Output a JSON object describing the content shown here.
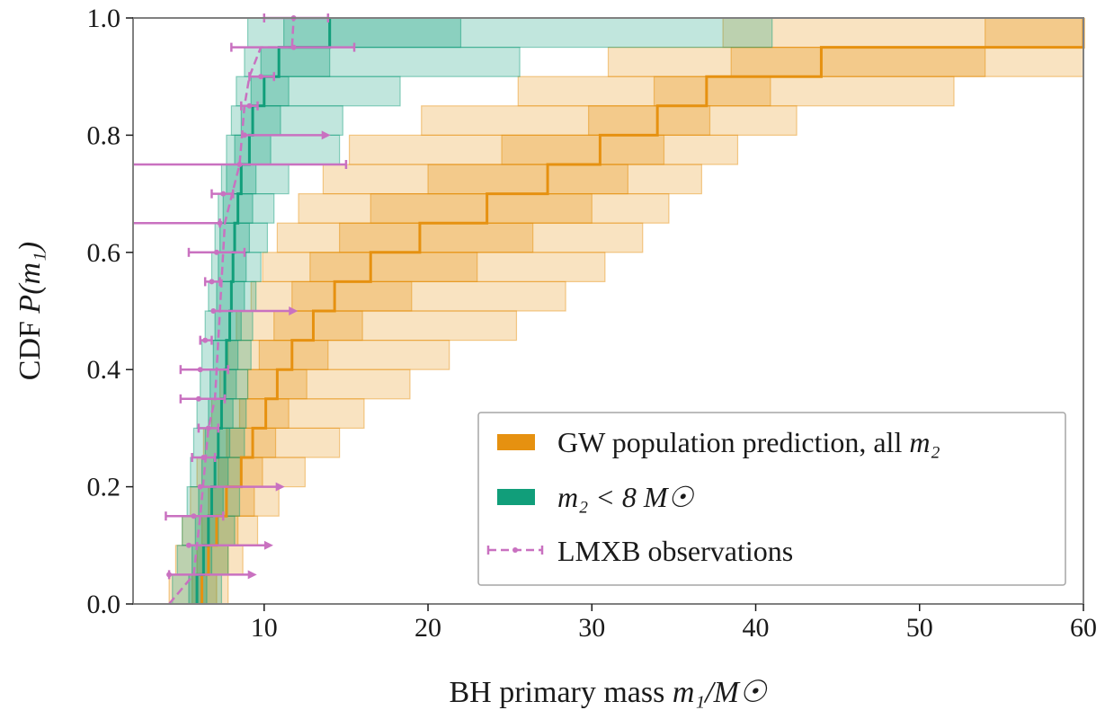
{
  "chart_data": {
    "type": "step-cdf",
    "xlabel_prefix": "BH primary mass ",
    "xlabel_math": "m₁/M☉",
    "ylabel_prefix": "CDF ",
    "ylabel_math": "P(m₁)",
    "xlim": [
      2,
      60
    ],
    "ylim": [
      0,
      1
    ],
    "xticks": [
      10,
      20,
      30,
      40,
      50,
      60
    ],
    "yticks": [
      0.0,
      0.2,
      0.4,
      0.6,
      0.8,
      1.0
    ],
    "xtick_labels": [
      "10",
      "20",
      "30",
      "40",
      "50",
      "60"
    ],
    "ytick_labels": [
      "0.0",
      "0.2",
      "0.4",
      "0.6",
      "0.8",
      "1.0"
    ],
    "grid": false,
    "legend_position": "lower-right",
    "colors": {
      "gw_all": "#e69110",
      "gw_low_m2": "#119e7a",
      "lmxb": "#c971c0"
    },
    "n_bins": 20,
    "series": [
      {
        "name": "GW population prediction, all m₂",
        "key": "gw_all",
        "median": [
          6.2,
          6.6,
          7.1,
          7.7,
          8.6,
          9.3,
          10.1,
          10.8,
          11.7,
          13.0,
          14.3,
          16.5,
          19.5,
          23.6,
          27.3,
          30.5,
          34.0,
          37.0,
          44.0,
          60.0
        ],
        "p25": [
          5.6,
          5.9,
          6.2,
          6.6,
          7.2,
          7.7,
          8.5,
          9.0,
          9.7,
          10.6,
          11.7,
          12.8,
          14.6,
          16.5,
          20.0,
          24.5,
          29.8,
          33.8,
          38.5,
          54.0
        ],
        "p75": [
          7.1,
          7.8,
          8.4,
          9.4,
          9.9,
          10.7,
          11.5,
          12.6,
          13.9,
          16.0,
          19.0,
          23.0,
          26.4,
          30.0,
          32.2,
          34.4,
          37.2,
          40.9,
          54.0,
          60.0
        ],
        "p05": [
          4.2,
          4.6,
          5.0,
          5.5,
          5.9,
          6.3,
          6.8,
          7.3,
          7.8,
          8.3,
          9.2,
          9.9,
          10.8,
          12.1,
          13.6,
          15.2,
          19.6,
          25.5,
          31.0,
          38.0
        ],
        "p95": [
          7.8,
          8.7,
          9.6,
          10.9,
          12.5,
          14.6,
          16.1,
          18.9,
          21.3,
          25.4,
          28.4,
          30.8,
          33.1,
          34.7,
          36.7,
          38.9,
          42.5,
          52.1,
          60.0,
          60.0
        ]
      },
      {
        "name": "m₂ < 8 M☉",
        "key": "gw_low_m2",
        "median": [
          5.9,
          6.3,
          6.6,
          6.8,
          7.0,
          7.2,
          7.4,
          7.6,
          7.7,
          7.9,
          8.0,
          8.1,
          8.2,
          8.4,
          8.6,
          9.1,
          9.3,
          10.0,
          10.9,
          14.0
        ],
        "p25": [
          5.4,
          5.6,
          5.8,
          6.0,
          6.2,
          6.4,
          6.6,
          6.7,
          6.9,
          7.0,
          7.1,
          7.2,
          7.3,
          7.5,
          7.7,
          8.2,
          8.6,
          9.2,
          9.8,
          11.2
        ],
        "p75": [
          6.5,
          6.8,
          7.2,
          7.5,
          7.8,
          7.9,
          8.1,
          8.3,
          8.4,
          8.6,
          8.8,
          8.9,
          9.1,
          9.3,
          9.5,
          10.4,
          11.0,
          11.5,
          14.0,
          22.0
        ],
        "p05": [
          4.4,
          4.7,
          5.0,
          5.3,
          5.5,
          5.7,
          5.9,
          6.1,
          6.2,
          6.4,
          6.6,
          6.8,
          7.0,
          7.2,
          7.4,
          7.7,
          8.0,
          8.3,
          8.8,
          9.0
        ],
        "p95": [
          7.4,
          7.8,
          8.2,
          8.5,
          8.6,
          8.8,
          8.9,
          9.0,
          9.2,
          9.3,
          9.5,
          9.8,
          10.2,
          10.6,
          11.5,
          14.6,
          14.8,
          18.3,
          25.6,
          41.0
        ]
      }
    ],
    "lmxb": {
      "name": "LMXB observations",
      "cdf_x": [
        4.2,
        5.7,
        6.1,
        6.6,
        7.0,
        7.3,
        7.6,
        8.5,
        8.8,
        9.1,
        9.8,
        11.7,
        11.8
      ],
      "cdf_y": [
        0.0,
        0.05,
        0.15,
        0.3,
        0.35,
        0.5,
        0.65,
        0.75,
        0.85,
        0.9,
        0.95,
        0.95,
        1.0
      ],
      "points": [
        {
          "y": 0.05,
          "x": 4.2,
          "lo": 4.2,
          "hi": 9.5,
          "lo_cap": true,
          "hi_arrow": true
        },
        {
          "y": 0.1,
          "x": 5.4,
          "lo": 5.4,
          "hi": 10.5,
          "lo_cap": false,
          "hi_arrow": true
        },
        {
          "y": 0.15,
          "x": 5.7,
          "lo": 4.0,
          "hi": 7.5,
          "lo_cap": true,
          "hi_arrow": false
        },
        {
          "y": 0.2,
          "x": 6.1,
          "lo": 6.1,
          "hi": 11.2,
          "lo_cap": false,
          "hi_arrow": true
        },
        {
          "y": 0.25,
          "x": 6.3,
          "lo": 5.6,
          "hi": 7.0,
          "lo_cap": true,
          "hi_arrow": false
        },
        {
          "y": 0.3,
          "x": 6.6,
          "lo": 6.0,
          "hi": 7.2,
          "lo_cap": true,
          "hi_arrow": false
        },
        {
          "y": 0.35,
          "x": 6.0,
          "lo": 4.9,
          "hi": 7.6,
          "lo_cap": true,
          "hi_arrow": false
        },
        {
          "y": 0.4,
          "x": 6.1,
          "lo": 4.9,
          "hi": 7.8,
          "lo_cap": true,
          "hi_arrow": false
        },
        {
          "y": 0.45,
          "x": 6.4,
          "lo": 6.1,
          "hi": 6.8,
          "lo_cap": true,
          "hi_arrow": false
        },
        {
          "y": 0.5,
          "x": 6.9,
          "lo": 6.9,
          "hi": 12.0,
          "lo_cap": false,
          "hi_arrow": true
        },
        {
          "y": 0.55,
          "x": 6.8,
          "lo": 6.4,
          "hi": 7.3,
          "lo_cap": true,
          "hi_arrow": false
        },
        {
          "y": 0.6,
          "x": 7.1,
          "lo": 5.4,
          "hi": 8.8,
          "lo_cap": true,
          "hi_arrow": false
        },
        {
          "y": 0.65,
          "x": 7.3,
          "lo": 0.0,
          "hi": 7.3,
          "lo_cap": false,
          "hi_arrow": false
        },
        {
          "y": 0.7,
          "x": 7.5,
          "lo": 6.8,
          "hi": 8.1,
          "lo_cap": true,
          "hi_arrow": false
        },
        {
          "y": 0.75,
          "x": 8.5,
          "lo": 0.0,
          "hi": 15.0,
          "lo_cap": false,
          "hi_arrow": false
        },
        {
          "y": 0.8,
          "x": 8.8,
          "lo": 8.8,
          "hi": 14.0,
          "lo_cap": false,
          "hi_arrow": true
        },
        {
          "y": 0.85,
          "x": 9.1,
          "lo": 8.6,
          "hi": 9.6,
          "lo_cap": true,
          "hi_arrow": false
        },
        {
          "y": 0.9,
          "x": 9.8,
          "lo": 9.1,
          "hi": 10.6,
          "lo_cap": true,
          "hi_arrow": false
        },
        {
          "y": 0.95,
          "x": 11.8,
          "lo": 8.0,
          "hi": 15.5,
          "lo_cap": true,
          "hi_arrow": false
        },
        {
          "y": 1.0,
          "x": 11.8,
          "lo": 10.0,
          "hi": 13.9,
          "lo_cap": true,
          "hi_arrow": false
        }
      ]
    },
    "legend": {
      "gw_all_text": "GW population prediction, all ",
      "gw_all_math": "m₂",
      "gw_low_text": "m₂ < 8 M☉",
      "lmxb_text": "LMXB observations"
    }
  }
}
